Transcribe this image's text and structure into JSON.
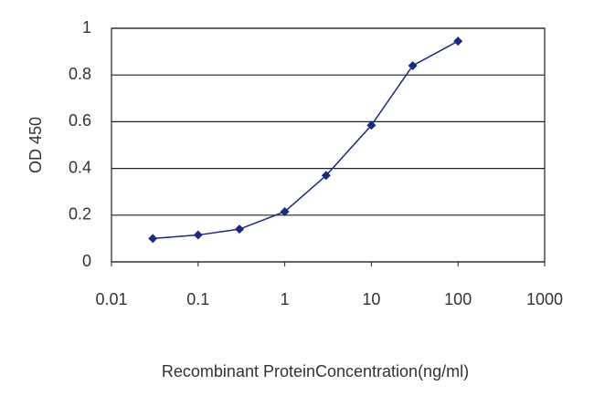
{
  "chart_data": {
    "type": "line",
    "x_label": "Recombinant ProteinConcentration(ng/ml)",
    "y_label": "OD 450",
    "x": [
      0.03,
      0.1,
      0.3,
      1,
      3,
      10,
      30,
      100
    ],
    "series": [
      {
        "color": "#1c2a80",
        "values": [
          0.1,
          0.115,
          0.14,
          0.215,
          0.37,
          0.585,
          0.84,
          0.945
        ]
      }
    ],
    "xlim": [
      0.01,
      1000
    ],
    "xticks": [
      0.01,
      0.1,
      1,
      10,
      100,
      1000
    ],
    "xscale": "log",
    "ylim": [
      0,
      1
    ],
    "yticks": [
      0,
      0.2,
      0.4,
      0.6,
      0.8,
      1
    ],
    "grid": true
  }
}
